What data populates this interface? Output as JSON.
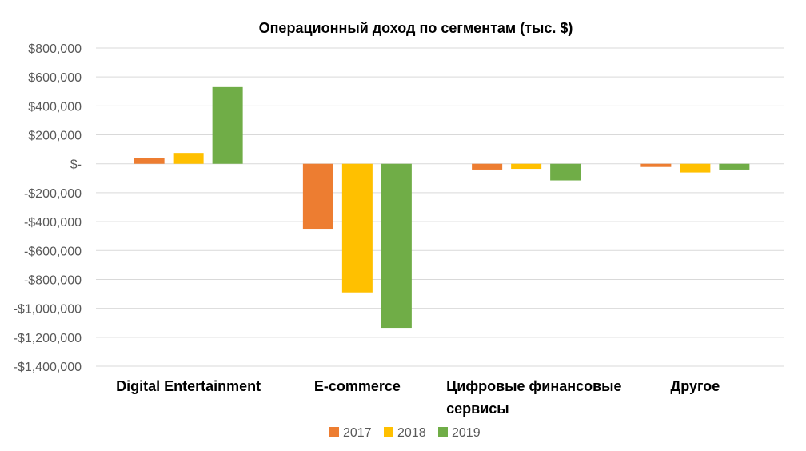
{
  "chart_data": {
    "type": "bar",
    "title": "Операционный доход по сегментам (тыс. $)",
    "xlabel": "",
    "ylabel": "",
    "categories": [
      [
        "Digital Entertainment"
      ],
      [
        "E-commerce"
      ],
      [
        "Цифровые финансовые",
        "сервисы"
      ],
      [
        "Другое"
      ]
    ],
    "series": [
      {
        "name": "2017",
        "color": "#ED7D31",
        "values": [
          40000,
          -455000,
          -40000,
          -22000
        ]
      },
      {
        "name": "2018",
        "color": "#FFC000",
        "values": [
          75000,
          -890000,
          -35000,
          -60000
        ]
      },
      {
        "name": "2019",
        "color": "#70AD47",
        "values": [
          530000,
          -1135000,
          -115000,
          -40000
        ]
      }
    ],
    "ylim": [
      -1400000,
      800000
    ],
    "yticks": [
      800000,
      600000,
      400000,
      200000,
      0,
      -200000,
      -400000,
      -600000,
      -800000,
      -1000000,
      -1200000,
      -1400000
    ],
    "ytick_labels": [
      "$800,000",
      "$600,000",
      "$400,000",
      "$200,000",
      "$-",
      "-$200,000",
      "-$400,000",
      "-$600,000",
      "-$800,000",
      "-$1,000,000",
      "-$1,200,000",
      "-$1,400,000"
    ],
    "grid": true,
    "legend": "bottom"
  }
}
